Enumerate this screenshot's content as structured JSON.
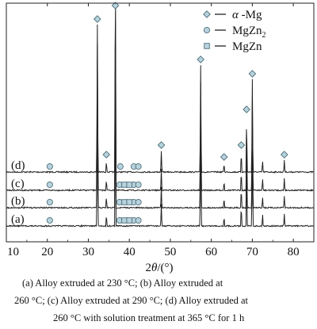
{
  "chart_data": {
    "type": "line",
    "x_range": [
      10,
      85
    ],
    "x_ticks": [
      10,
      20,
      30,
      40,
      50,
      60,
      70,
      80
    ],
    "xlabel": "2θ/(°)",
    "xlabel_parts": [
      "2",
      "θ",
      "/(°)"
    ],
    "legend": [
      {
        "label_parts": [
          "α",
          " -Mg",
          ""
        ],
        "marker": "diamond"
      },
      {
        "label_parts": [
          "",
          "MgZn",
          "2"
        ],
        "marker": "circle"
      },
      {
        "label_parts": [
          "",
          "MgZn",
          ""
        ],
        "marker": "square"
      }
    ],
    "legend_placement": "top-right",
    "series": [
      {
        "name": "(d)",
        "peaks": [
          [
            32.2,
            0.62
          ],
          [
            34.4,
            0.05
          ],
          [
            36.6,
            0.7
          ],
          [
            47.8,
            0.09
          ],
          [
            57.4,
            0.45
          ],
          [
            63.1,
            0.04
          ],
          [
            67.3,
            0.09
          ],
          [
            68.6,
            0.24
          ],
          [
            70.0,
            0.39
          ],
          [
            72.5,
            0.05
          ],
          [
            77.8,
            0.05
          ]
        ]
      },
      {
        "name": "(c)",
        "peaks": [
          [
            32.2,
            0.62
          ],
          [
            34.4,
            0.05
          ],
          [
            36.6,
            1.2
          ],
          [
            47.8,
            0.09
          ],
          [
            57.4,
            0.45
          ],
          [
            63.1,
            0.04
          ],
          [
            67.3,
            0.09
          ],
          [
            68.6,
            0.24
          ],
          [
            70.0,
            0.39
          ],
          [
            72.5,
            0.05
          ],
          [
            77.8,
            0.05
          ]
        ]
      },
      {
        "name": "(b)",
        "peaks": [
          [
            32.2,
            0.62
          ],
          [
            34.4,
            0.05
          ],
          [
            36.6,
            0.7
          ],
          [
            47.8,
            0.09
          ],
          [
            57.4,
            0.45
          ],
          [
            63.1,
            0.04
          ],
          [
            67.3,
            0.09
          ],
          [
            68.6,
            0.24
          ],
          [
            70.0,
            0.39
          ],
          [
            72.5,
            0.05
          ],
          [
            77.8,
            0.05
          ]
        ]
      },
      {
        "name": "(a)",
        "peaks": [
          [
            32.2,
            0.62
          ],
          [
            34.4,
            0.05
          ],
          [
            36.6,
            0.7
          ],
          [
            47.8,
            0.09
          ],
          [
            57.4,
            0.45
          ],
          [
            63.1,
            0.04
          ],
          [
            67.3,
            0.09
          ],
          [
            68.6,
            0.24
          ],
          [
            70.0,
            0.39
          ],
          [
            72.5,
            0.05
          ],
          [
            77.8,
            0.05
          ]
        ]
      }
    ],
    "markers": [
      {
        "shape": "diamond",
        "x": 32.2,
        "series": "(d)"
      },
      {
        "shape": "diamond",
        "x": 34.4,
        "series": "(d)"
      },
      {
        "shape": "diamond",
        "x": 36.6,
        "series": "(d)"
      },
      {
        "shape": "diamond",
        "x": 47.8,
        "series": "(d)"
      },
      {
        "shape": "diamond",
        "x": 57.4,
        "series": "(d)"
      },
      {
        "shape": "diamond",
        "x": 63.1,
        "series": "(d)"
      },
      {
        "shape": "diamond",
        "x": 67.3,
        "series": "(d)"
      },
      {
        "shape": "diamond",
        "x": 68.6,
        "series": "(d)"
      },
      {
        "shape": "diamond",
        "x": 70.0,
        "series": "(d)"
      },
      {
        "shape": "diamond",
        "x": 77.8,
        "series": "(d)"
      },
      {
        "shape": "circle",
        "x": 20.6,
        "series": "(d)"
      },
      {
        "shape": "circle",
        "x": 20.6,
        "series": "(c)"
      },
      {
        "shape": "circle",
        "x": 20.6,
        "series": "(b)"
      },
      {
        "shape": "circle",
        "x": 20.6,
        "series": "(a)"
      },
      {
        "shape": "circle",
        "x": 37.8,
        "series": "(d)"
      },
      {
        "shape": "circle",
        "x": 37.6,
        "series": "(c)"
      },
      {
        "shape": "circle",
        "x": 37.6,
        "series": "(b)"
      },
      {
        "shape": "circle",
        "x": 37.6,
        "series": "(a)"
      },
      {
        "shape": "circle",
        "x": 41.1,
        "series": "(d)"
      },
      {
        "shape": "circle",
        "x": 42.2,
        "series": "(d)"
      },
      {
        "shape": "circle",
        "x": 41.1,
        "series": "(c)"
      },
      {
        "shape": "circle",
        "x": 42.2,
        "series": "(c)"
      },
      {
        "shape": "circle",
        "x": 41.1,
        "series": "(b)"
      },
      {
        "shape": "circle",
        "x": 42.2,
        "series": "(b)"
      },
      {
        "shape": "circle",
        "x": 41.1,
        "series": "(a)"
      },
      {
        "shape": "circle",
        "x": 42.2,
        "series": "(a)"
      },
      {
        "shape": "square",
        "x": 38.8,
        "series": "(c)"
      },
      {
        "shape": "square",
        "x": 40.0,
        "series": "(c)"
      },
      {
        "shape": "square",
        "x": 38.8,
        "series": "(b)"
      },
      {
        "shape": "square",
        "x": 40.0,
        "series": "(b)"
      },
      {
        "shape": "square",
        "x": 38.8,
        "series": "(a)"
      },
      {
        "shape": "square",
        "x": 40.0,
        "series": "(a)"
      }
    ],
    "colors": {
      "marker_fill": "#b7d3dd",
      "marker_stroke": "#4e6f7a",
      "line": "#222222"
    }
  },
  "caption": {
    "line1": "(a) Alloy extruded at 230 °C; (b) Alloy extruded at",
    "line2": "260 °C; (c) Alloy extruded at 290 °C; (d) Alloy extruded at",
    "line3": "260 °C with solution treatment at 365 °C for 1 h"
  }
}
